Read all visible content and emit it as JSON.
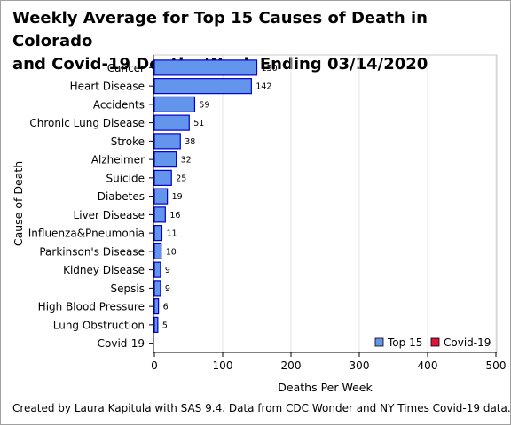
{
  "title_line1": "Weekly Average for Top 15 Causes of Death in Colorado",
  "title_line2": "and Covid-19 Deaths Week Ending 03/14/2020",
  "footnote": "Created by Laura Kapitula with SAS 9.4. Data from CDC Wonder and NY Times Covid-19 data.",
  "colors": {
    "top15": "#6495ED",
    "top15_border": "#0000CD",
    "covid": "#DC143C"
  },
  "chart_data": {
    "type": "bar",
    "orientation": "horizontal",
    "xlabel": "Deaths Per Week",
    "ylabel": "Cause of Death",
    "xlim": [
      0,
      500
    ],
    "xticks": [
      "0",
      "100",
      "200",
      "300",
      "400",
      "500"
    ],
    "grid": true,
    "legend_position": "bottom-right",
    "categories": [
      "Cancer",
      "Heart Disease",
      "Accidents",
      "Chronic Lung Disease",
      "Stroke",
      "Alzheimer",
      "Suicide",
      "Diabetes",
      "Liver Disease",
      "Influenza&Pneumonia",
      "Parkinson's Disease",
      "Kidney Disease",
      "Sepsis",
      "High Blood Pressure",
      "Lung Obstruction",
      "Covid-19"
    ],
    "series": [
      {
        "name": "Top 15",
        "values": [
          150,
          142,
          59,
          51,
          38,
          32,
          25,
          19,
          16,
          11,
          10,
          9,
          9,
          6,
          5,
          null
        ],
        "labels": [
          "150",
          "142",
          "59",
          "51",
          "38",
          "32",
          "25",
          "19",
          "16",
          "11",
          "10",
          "9",
          "9",
          "6",
          "5",
          ""
        ]
      },
      {
        "name": "Covid-19",
        "values": [
          null,
          null,
          null,
          null,
          null,
          null,
          null,
          null,
          null,
          null,
          null,
          null,
          null,
          null,
          null,
          0
        ],
        "labels": [
          "",
          "",
          "",
          "",
          "",
          "",
          "",
          "",
          "",
          "",
          "",
          "",
          "",
          "",
          "",
          ""
        ]
      }
    ]
  }
}
